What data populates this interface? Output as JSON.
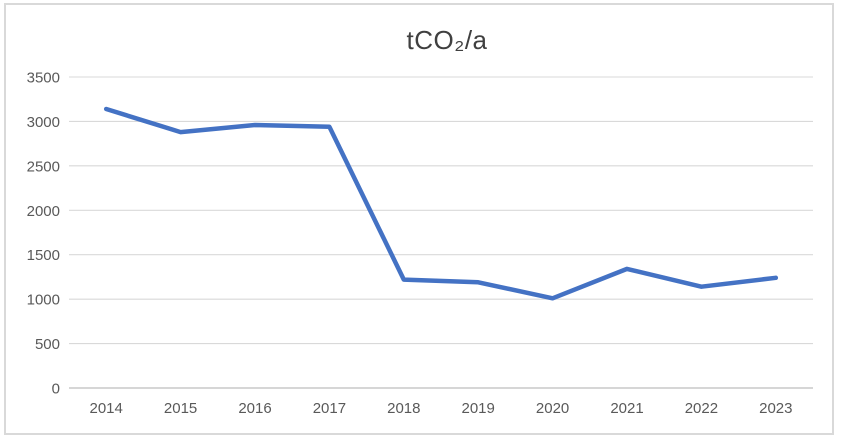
{
  "chart_data": {
    "type": "line",
    "title": "tCO₂/a",
    "categories": [
      "2014",
      "2015",
      "2016",
      "2017",
      "2018",
      "2019",
      "2020",
      "2021",
      "2022",
      "2023"
    ],
    "values": [
      3140,
      2880,
      2960,
      2940,
      1220,
      1190,
      1010,
      1340,
      1140,
      1240
    ],
    "xlabel": "",
    "ylabel": "",
    "ylim": [
      0,
      3500
    ],
    "yticks": [
      0,
      500,
      1000,
      1500,
      2000,
      2500,
      3000,
      3500
    ],
    "grid": "horizontal",
    "legend": "none",
    "line_color": "#4472c4"
  },
  "colors": {
    "line": "#4472c4",
    "gridline": "#d9d9d9",
    "axis_line": "#c9c9c9",
    "title_text": "#404040",
    "axis_text": "#595959",
    "frame_border": "#d9d9d9",
    "background": "#ffffff"
  }
}
